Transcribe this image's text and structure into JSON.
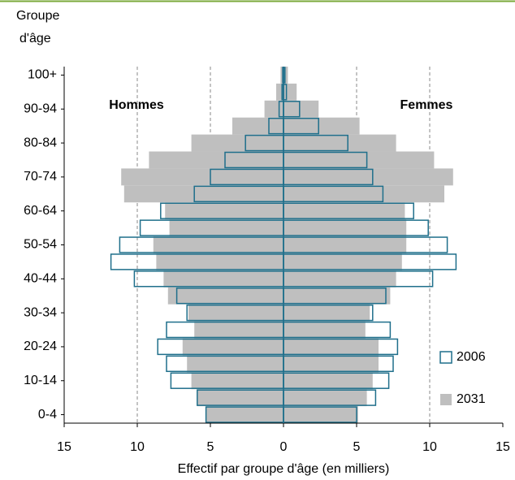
{
  "chart_data": {
    "type": "pyramid",
    "y_axis_title_lines": [
      "Groupe",
      "d'âge"
    ],
    "x_axis_label": "Effectif par groupe d'âge (en milliers)",
    "left_label": "Hommes",
    "right_label": "Femmes",
    "categories": [
      "0-4",
      null,
      "10-14",
      null,
      "20-24",
      null,
      "30-34",
      null,
      "40-44",
      null,
      "50-54",
      null,
      "60-64",
      null,
      "70-74",
      null,
      "80-84",
      null,
      "90-94",
      null,
      "100+"
    ],
    "xlim": [
      -15,
      15
    ],
    "xticks": [
      {
        "value": -15,
        "label": "15"
      },
      {
        "value": -10,
        "label": "10"
      },
      {
        "value": -5,
        "label": "5"
      },
      0,
      5,
      10,
      15
    ],
    "grid": true,
    "series": [
      {
        "name": "2006",
        "color": "#1f6f8b",
        "style": "outline",
        "men": [
          5.3,
          5.9,
          7.7,
          8.0,
          8.6,
          8.0,
          6.6,
          7.3,
          10.2,
          11.8,
          11.2,
          9.8,
          8.4,
          6.1,
          5.0,
          4.0,
          2.6,
          1.0,
          0.3,
          0.1,
          0.05
        ],
        "women": [
          5.0,
          6.3,
          7.2,
          7.5,
          7.8,
          7.3,
          6.1,
          7.0,
          10.2,
          11.8,
          11.2,
          9.9,
          8.9,
          6.8,
          6.1,
          5.7,
          4.4,
          2.4,
          1.1,
          0.2,
          0.1
        ]
      },
      {
        "name": "2031",
        "color": "#bfbfbf",
        "style": "filled",
        "men": [
          5.3,
          5.9,
          6.3,
          6.6,
          6.9,
          6.1,
          6.5,
          7.9,
          8.2,
          8.7,
          8.9,
          7.8,
          8.1,
          10.9,
          11.1,
          9.2,
          6.3,
          3.5,
          1.3,
          0.5,
          0.2
        ],
        "women": [
          5.1,
          5.7,
          6.1,
          6.5,
          6.5,
          5.6,
          5.9,
          7.3,
          7.7,
          8.1,
          8.4,
          8.4,
          8.3,
          11.0,
          11.6,
          10.3,
          7.7,
          5.2,
          2.4,
          0.9,
          0.3
        ]
      }
    ]
  }
}
